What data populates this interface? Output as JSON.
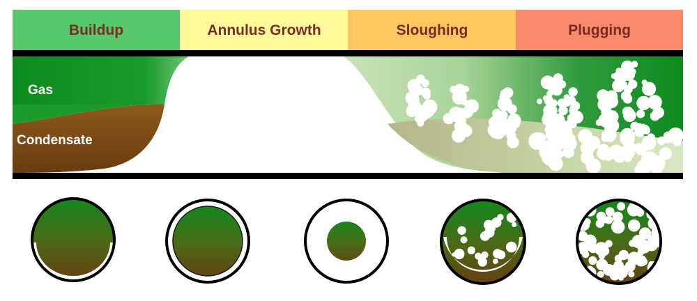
{
  "stages": [
    {
      "key": "buildup",
      "label": "Buildup",
      "color": "#56c96a"
    },
    {
      "key": "annulus-growth",
      "label": "Annulus Growth",
      "color": "#fffb9b"
    },
    {
      "key": "sloughing",
      "label": "Sloughing",
      "color": "#fdc862"
    },
    {
      "key": "plugging",
      "label": "Plugging",
      "color": "#f98a6c"
    }
  ],
  "regions": {
    "gas_label": "Gas",
    "condensate_label": "Condensate"
  },
  "colors": {
    "gas": "#0f8a1e",
    "condensate": "#6b3a10",
    "hydrate": "#ffffff",
    "pipe_wall": "#000000",
    "stage_label": "#7a2b23"
  },
  "cross_sections": [
    {
      "stage": "Buildup",
      "depiction": "hydrate film on lower wall"
    },
    {
      "stage": "Annulus Growth",
      "depiction": "thin hydrate ring around full fluid core"
    },
    {
      "stage": "Annulus Growth",
      "depiction": "thick hydrate annulus, small fluid core"
    },
    {
      "stage": "Sloughing",
      "depiction": "hydrate particles dispersed in fluid"
    },
    {
      "stage": "Plugging",
      "depiction": "pipe cross-section filled with hydrate particles"
    }
  ]
}
